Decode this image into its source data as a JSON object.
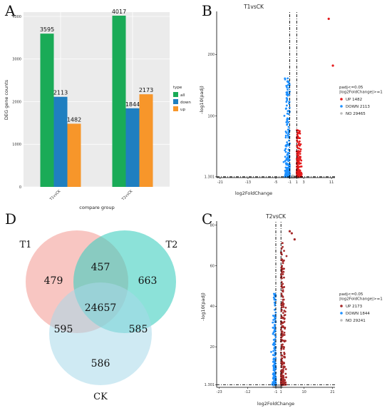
{
  "panels": {
    "a": "A",
    "b": "B",
    "c": "C",
    "d": "D"
  },
  "chart_data": [
    {
      "type": "bar",
      "xlabel": "compare group",
      "ylabel": "DEG gene counts",
      "ylim": [
        0,
        4100
      ],
      "yticks": [
        0,
        1000,
        2000,
        3000,
        4000
      ],
      "categories": [
        "T1vsCK",
        "T2vsCK"
      ],
      "legend": {
        "title": "type",
        "position": "right"
      },
      "grid": true,
      "series": [
        {
          "name": "all",
          "color": "#1aab57",
          "values": [
            3595,
            4017
          ]
        },
        {
          "name": "down",
          "color": "#1f7fc0",
          "values": [
            2113,
            1844
          ]
        },
        {
          "name": "up",
          "color": "#f7962a",
          "values": [
            1482,
            2173
          ]
        }
      ]
    },
    {
      "type": "scatter",
      "title": "T1vsCK",
      "xlabel": "log2FoldChange",
      "ylabel": "-log10(padj)",
      "xlim": [
        -22,
        12
      ],
      "ylim": [
        0,
        270
      ],
      "xticks": [
        -21,
        -13,
        -5,
        -1,
        1,
        3,
        11
      ],
      "yticks": [
        1.301,
        100,
        200
      ],
      "ytick_labels": [
        "1.301",
        "100",
        "200"
      ],
      "thresholds": {
        "x": [
          -1,
          1
        ],
        "y": 1.301
      },
      "legend": {
        "title": "padj<=0.05\n|log2FoldChange|>=1",
        "position": "right",
        "items": [
          {
            "label": "UP 1482",
            "color": "#e41a1c"
          },
          {
            "label": "DOWN 2113",
            "color": "#1e90ff"
          },
          {
            "label": "NO 29465",
            "color": "#bdbdbd"
          }
        ]
      }
    },
    {
      "type": "scatter",
      "title": "T2vsCK",
      "xlabel": "log2FoldChange",
      "ylabel": "-log10(padj)",
      "xlim": [
        -24,
        22
      ],
      "ylim": [
        0,
        82
      ],
      "xticks": [
        -23,
        -12,
        -1,
        1,
        10,
        21
      ],
      "yticks": [
        1.301,
        20,
        40,
        60,
        80
      ],
      "ytick_labels": [
        "1.301",
        "20",
        "40",
        "60",
        "80"
      ],
      "thresholds": {
        "x": [
          -1,
          1
        ],
        "y": 1.301
      },
      "legend": {
        "title": "padj<=0.05\n|log2FoldChange|>=1",
        "position": "right",
        "items": [
          {
            "label": "UP 2173",
            "color": "#a52a2a"
          },
          {
            "label": "DOWN 1844",
            "color": "#1e90ff"
          },
          {
            "label": "NO 29241",
            "color": "#bdbdbd"
          }
        ]
      }
    },
    {
      "type": "venn",
      "sets": [
        {
          "name": "T1",
          "color": "#f4a09a"
        },
        {
          "name": "T2",
          "color": "#3fcfbf"
        },
        {
          "name": "CK",
          "color": "#a8d8ea"
        }
      ],
      "regions": {
        "T1_only": "479",
        "T2_only": "663",
        "CK_only": "586",
        "T1_T2": "457",
        "T1_CK": "595",
        "T2_CK": "585",
        "all": "24657"
      }
    }
  ]
}
